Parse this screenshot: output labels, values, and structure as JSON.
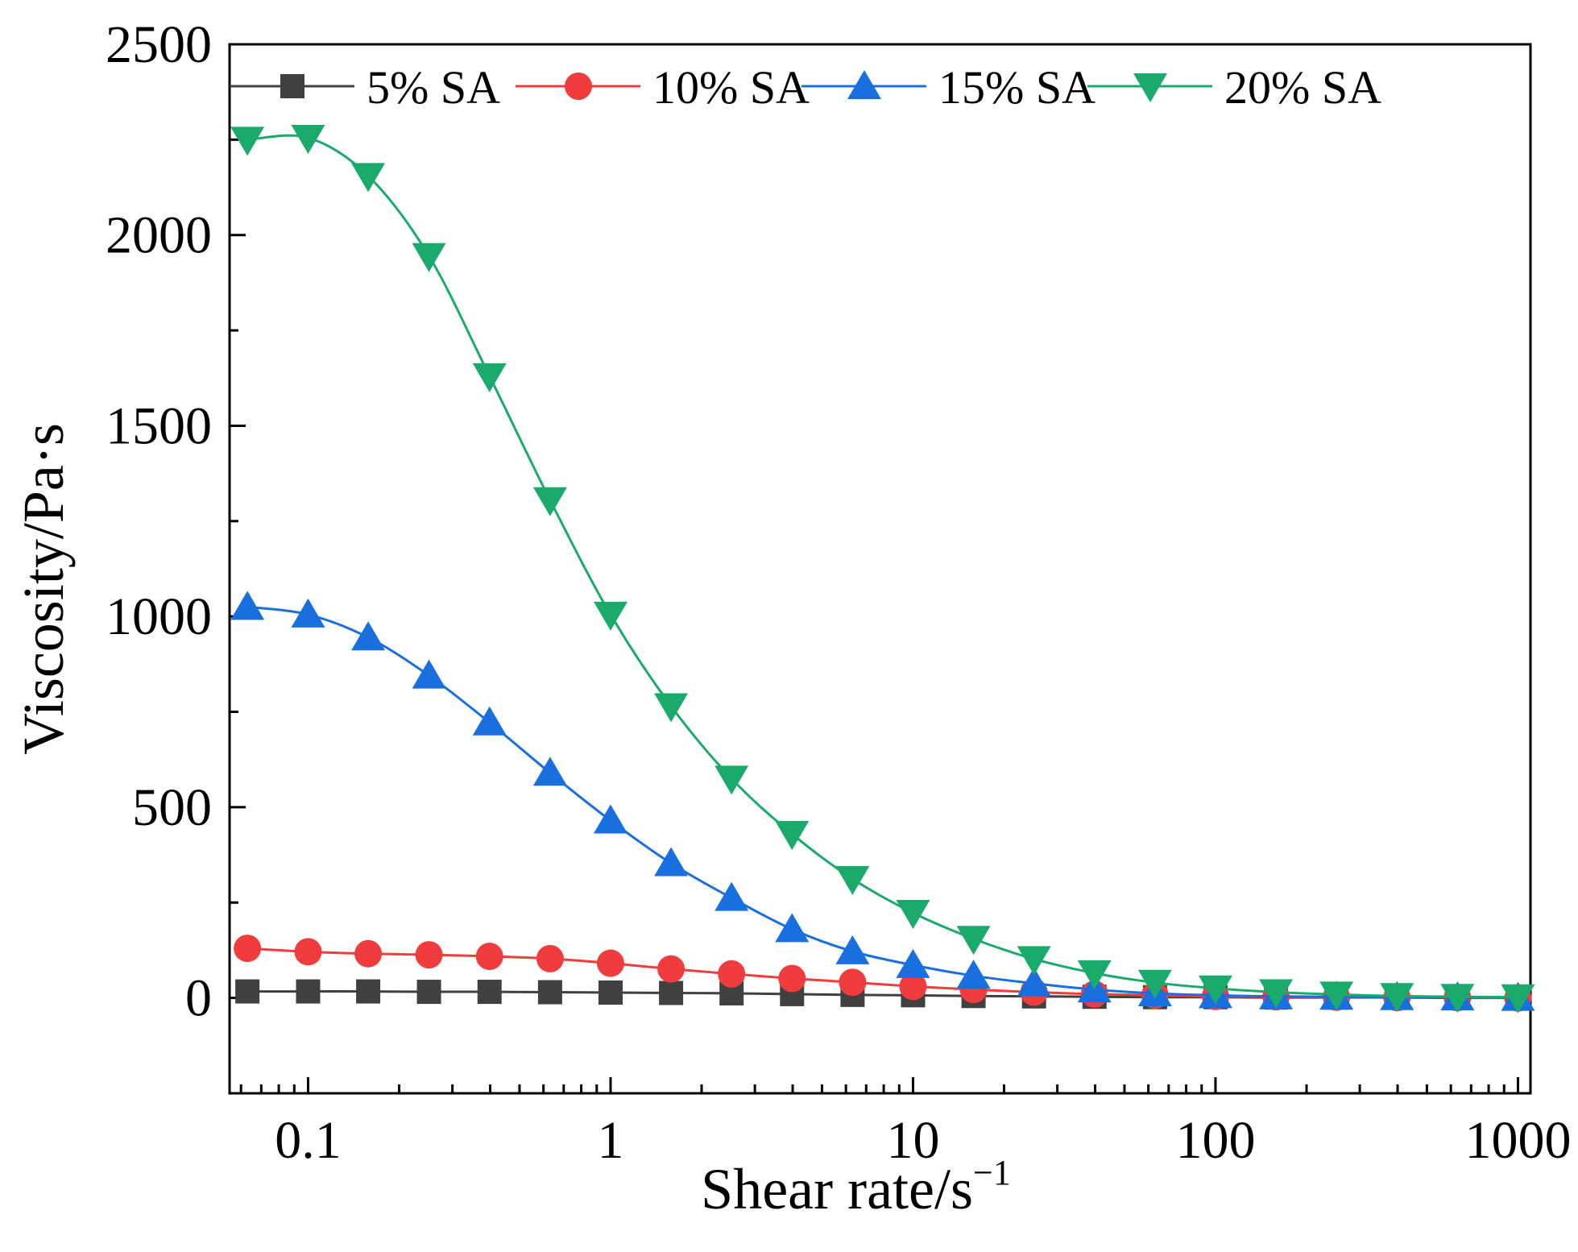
{
  "chart_data": {
    "type": "line",
    "xscale": "log",
    "xlabel": "Shear rate/s",
    "xlabel_superscript": "−1",
    "ylabel": "Viscosity/Pa·s",
    "xlim": [
      0.055,
      1100
    ],
    "ylim": [
      -250,
      2500
    ],
    "x_ticks": [
      0.1,
      1,
      10,
      100,
      1000
    ],
    "x_tick_labels": [
      "0.1",
      "1",
      "10",
      "100",
      "1000"
    ],
    "y_ticks": [
      0,
      500,
      1000,
      1500,
      2000,
      2500
    ],
    "y_tick_labels": [
      "0",
      "500",
      "1000",
      "1500",
      "2000",
      "2500"
    ],
    "legend_position": "top",
    "x": [
      0.063,
      0.1,
      0.158,
      0.251,
      0.398,
      0.631,
      1,
      1.585,
      2.512,
      3.981,
      6.31,
      10,
      15.85,
      25.12,
      39.81,
      63.1,
      100,
      158.5,
      251.2,
      398.1,
      631,
      1000
    ],
    "series": [
      {
        "name": "5% SA",
        "color": "#404040",
        "marker": "square",
        "values": [
          17,
          17,
          17,
          16,
          16,
          15,
          14,
          13,
          12,
          10,
          8,
          7,
          5,
          4,
          3,
          2,
          2,
          1,
          1,
          1,
          0,
          0
        ]
      },
      {
        "name": "10% SA",
        "color": "#f03c3c",
        "marker": "circle",
        "values": [
          130,
          121,
          116,
          113,
          109,
          103,
          91,
          76,
          63,
          51,
          41,
          30,
          22,
          15,
          10,
          7,
          4,
          3,
          2,
          1,
          1,
          0
        ]
      },
      {
        "name": "15% SA",
        "color": "#1a6fdf",
        "marker": "triangle-up",
        "values": [
          1025,
          1005,
          945,
          845,
          722,
          590,
          465,
          353,
          262,
          180,
          122,
          86,
          58,
          38,
          22,
          12,
          7,
          4,
          3,
          2,
          1,
          0
        ]
      },
      {
        "name": "20% SA",
        "color": "#1aaa6b",
        "marker": "triangle-down",
        "values": [
          2250,
          2255,
          2155,
          1945,
          1630,
          1305,
          1005,
          765,
          575,
          430,
          312,
          223,
          155,
          102,
          65,
          40,
          25,
          15,
          9,
          5,
          3,
          2
        ]
      }
    ]
  }
}
